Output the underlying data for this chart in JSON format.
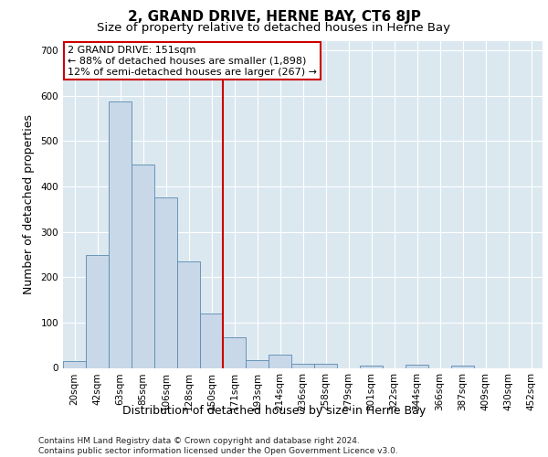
{
  "title": "2, GRAND DRIVE, HERNE BAY, CT6 8JP",
  "subtitle": "Size of property relative to detached houses in Herne Bay",
  "xlabel": "Distribution of detached houses by size in Herne Bay",
  "ylabel": "Number of detached properties",
  "footer_line1": "Contains HM Land Registry data © Crown copyright and database right 2024.",
  "footer_line2": "Contains public sector information licensed under the Open Government Licence v3.0.",
  "property_label": "2 GRAND DRIVE: 151sqm",
  "annotation_line1": "← 88% of detached houses are smaller (1,898)",
  "annotation_line2": "12% of semi-detached houses are larger (267) →",
  "bar_categories": [
    "20sqm",
    "42sqm",
    "63sqm",
    "85sqm",
    "106sqm",
    "128sqm",
    "150sqm",
    "171sqm",
    "193sqm",
    "214sqm",
    "236sqm",
    "258sqm",
    "279sqm",
    "301sqm",
    "322sqm",
    "344sqm",
    "366sqm",
    "387sqm",
    "409sqm",
    "430sqm",
    "452sqm"
  ],
  "bar_values": [
    15,
    248,
    588,
    448,
    375,
    235,
    120,
    68,
    18,
    30,
    10,
    10,
    0,
    6,
    0,
    8,
    0,
    6,
    0,
    0,
    0
  ],
  "bar_color": "#c8d8e8",
  "bar_edge_color": "#5a8ab0",
  "vline_color": "#cc0000",
  "vline_x": 6.5,
  "ylim": [
    0,
    720
  ],
  "yticks": [
    0,
    100,
    200,
    300,
    400,
    500,
    600,
    700
  ],
  "plot_bg_color": "#dce8f0",
  "annotation_box_color": "#cc0000",
  "title_fontsize": 11,
  "subtitle_fontsize": 9.5,
  "ylabel_fontsize": 9,
  "xlabel_fontsize": 9,
  "tick_fontsize": 7.5,
  "annotation_fontsize": 8,
  "footer_fontsize": 6.5
}
